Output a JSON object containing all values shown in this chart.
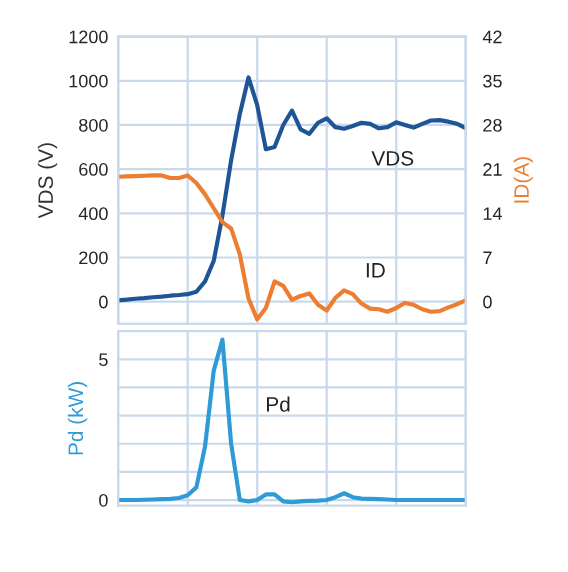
{
  "chart_data": [
    {
      "type": "line",
      "ylabel": "VDS (V)",
      "y2label": "ID(A)",
      "grid": true,
      "tick_labels": "y",
      "categories": [
        null,
        null,
        null,
        null,
        null,
        null,
        null,
        null,
        null,
        null,
        null,
        null,
        null,
        null,
        null,
        null,
        null,
        null,
        null,
        null,
        null,
        null,
        null,
        null,
        null,
        null,
        null,
        null,
        null,
        null,
        null,
        null,
        null,
        null,
        null,
        null,
        null,
        null,
        null,
        null,
        null
      ],
      "ylim": [
        -100,
        1200
      ],
      "yticks": [
        0,
        200,
        400,
        600,
        800,
        1000,
        1200
      ],
      "y2lim": [
        -3.5,
        42
      ],
      "y2ticks": [
        0,
        7,
        14,
        21,
        28,
        35,
        42
      ],
      "series": [
        {
          "name": "VDS",
          "color": "#1f5597",
          "values": [
            6,
            9,
            13,
            16,
            20,
            23,
            27,
            30,
            34,
            45,
            92,
            185,
            390,
            640,
            850,
            1015,
            890,
            690,
            700,
            800,
            865,
            780,
            760,
            810,
            830,
            790,
            783,
            795,
            810,
            805,
            785,
            790,
            812,
            800,
            788,
            805,
            820,
            822,
            815,
            805,
            786
          ]
        },
        {
          "name": "ID",
          "color": "#ed7d31",
          "axis": "y2",
          "values": [
            19.8,
            19.85,
            19.9,
            19.95,
            20.0,
            20.0,
            19.6,
            19.6,
            20.0,
            18.8,
            17.0,
            14.8,
            12.6,
            11.6,
            7.5,
            0.5,
            -2.8,
            -1.0,
            3.2,
            2.5,
            0.3,
            0.9,
            1.3,
            -0.5,
            -1.4,
            0.6,
            1.8,
            1.2,
            -0.3,
            -1.1,
            -1.2,
            -1.6,
            -1.0,
            -0.2,
            -0.5,
            -1.2,
            -1.6,
            -1.5,
            -0.9,
            -0.4,
            0.2
          ]
        }
      ]
    },
    {
      "type": "line",
      "ylabel": "Pd (kW)",
      "grid": true,
      "tick_labels": "y",
      "categories": [
        null,
        null,
        null,
        null,
        null,
        null,
        null,
        null,
        null,
        null,
        null,
        null,
        null,
        null,
        null,
        null,
        null,
        null,
        null,
        null,
        null,
        null,
        null,
        null,
        null,
        null,
        null,
        null,
        null,
        null,
        null,
        null,
        null,
        null,
        null,
        null,
        null,
        null,
        null,
        null,
        null
      ],
      "ylim": [
        -0.2,
        6.0
      ],
      "yticks": [
        0,
        {
          "value": 1,
          "label": null
        },
        {
          "value": 2,
          "label": null
        },
        {
          "value": 3,
          "label": null
        },
        {
          "value": 4,
          "label": null
        },
        5
      ],
      "series": [
        {
          "name": "Pd",
          "color": "#2e9bd6",
          "values": [
            0,
            0,
            0,
            0.01,
            0.02,
            0.03,
            0.04,
            0.07,
            0.17,
            0.45,
            1.9,
            4.6,
            5.7,
            2.0,
            0,
            -0.05,
            0,
            0.2,
            0.2,
            -0.05,
            -0.08,
            -0.05,
            -0.03,
            -0.02,
            0,
            0.1,
            0.24,
            0.1,
            0.05,
            0.04,
            0.03,
            0.02,
            0,
            0,
            0,
            0,
            0,
            0,
            0,
            0,
            0
          ]
        }
      ]
    }
  ]
}
